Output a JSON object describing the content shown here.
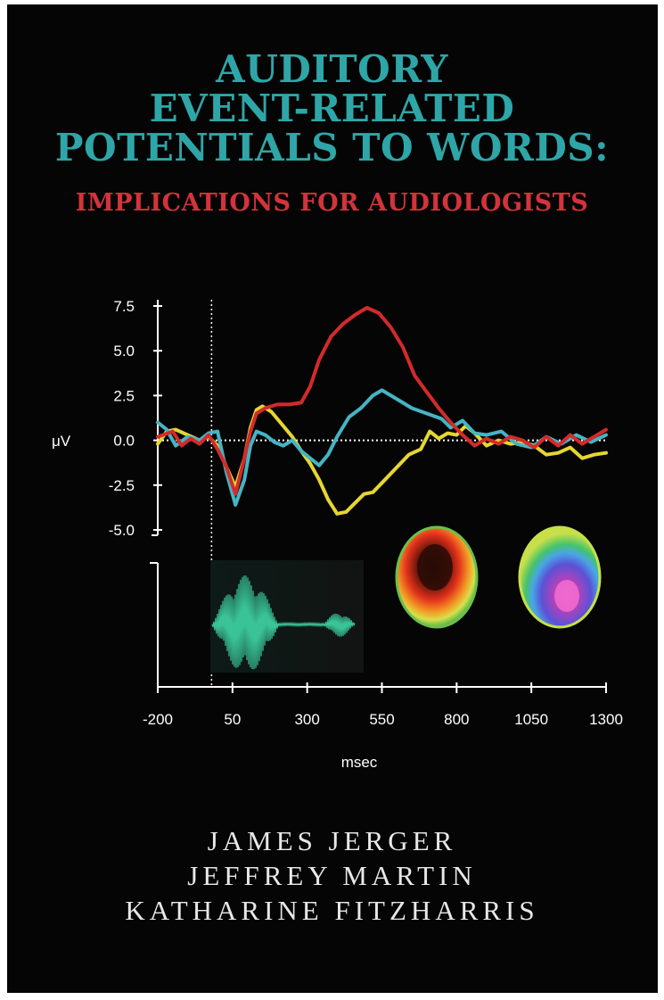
{
  "cover": {
    "title_lines": [
      "AUDITORY",
      "EVENT-RELATED",
      "POTENTIALS TO WORDS:"
    ],
    "subtitle": "IMPLICATIONS FOR AUDIOLOGISTS",
    "authors": [
      "JAMES JERGER",
      "JEFFREY MARTIN",
      "KATHARINE FITZHARRIS"
    ],
    "colors": {
      "background": "#050505",
      "title": "#2ea6a8",
      "subtitle": "#d3333b"
    }
  },
  "chart_data": {
    "type": "line",
    "xlabel": "msec",
    "ylabel": "μV",
    "xlim": [
      -200,
      1300
    ],
    "ylim": [
      -5.0,
      7.5
    ],
    "x_ticks": [
      "-200",
      "50",
      "300",
      "550",
      "800",
      "1050",
      "1300"
    ],
    "y_ticks": [
      "7.5",
      "5.0",
      "2.5",
      "0.0",
      "-2.5",
      "-5.0"
    ],
    "stimulus_onset_ms": -20,
    "series": [
      {
        "color": "#d42a2a",
        "points": [
          [
            -200,
            0.2
          ],
          [
            -150,
            0.5
          ],
          [
            -120,
            -0.3
          ],
          [
            -90,
            0.1
          ],
          [
            -60,
            -0.2
          ],
          [
            -30,
            0.3
          ],
          [
            0,
            -0.5
          ],
          [
            30,
            -1.5
          ],
          [
            60,
            -3.0
          ],
          [
            90,
            -1.0
          ],
          [
            110,
            0.5
          ],
          [
            130,
            1.5
          ],
          [
            160,
            1.8
          ],
          [
            200,
            2.0
          ],
          [
            240,
            2.0
          ],
          [
            280,
            2.1
          ],
          [
            310,
            3.0
          ],
          [
            340,
            4.5
          ],
          [
            380,
            5.8
          ],
          [
            420,
            6.5
          ],
          [
            460,
            7.0
          ],
          [
            500,
            7.4
          ],
          [
            540,
            7.1
          ],
          [
            580,
            6.3
          ],
          [
            620,
            5.2
          ],
          [
            660,
            3.6
          ],
          [
            700,
            2.7
          ],
          [
            740,
            1.8
          ],
          [
            780,
            1.0
          ],
          [
            820,
            0.3
          ],
          [
            860,
            -0.3
          ],
          [
            900,
            0.1
          ],
          [
            940,
            -0.2
          ],
          [
            980,
            0.2
          ],
          [
            1020,
            0.0
          ],
          [
            1060,
            -0.4
          ],
          [
            1100,
            0.2
          ],
          [
            1140,
            -0.3
          ],
          [
            1180,
            0.3
          ],
          [
            1220,
            -0.2
          ],
          [
            1260,
            0.2
          ],
          [
            1300,
            0.6
          ]
        ]
      },
      {
        "color": "#45b4c4",
        "points": [
          [
            -200,
            1.0
          ],
          [
            -170,
            0.6
          ],
          [
            -140,
            -0.3
          ],
          [
            -100,
            0.2
          ],
          [
            -60,
            0.0
          ],
          [
            -30,
            0.4
          ],
          [
            0,
            0.5
          ],
          [
            30,
            -1.8
          ],
          [
            60,
            -3.6
          ],
          [
            90,
            -2.2
          ],
          [
            110,
            -0.3
          ],
          [
            130,
            0.5
          ],
          [
            160,
            0.3
          ],
          [
            190,
            -0.1
          ],
          [
            220,
            -0.3
          ],
          [
            250,
            0.0
          ],
          [
            280,
            -0.6
          ],
          [
            310,
            -1.0
          ],
          [
            340,
            -1.4
          ],
          [
            370,
            -0.8
          ],
          [
            400,
            0.2
          ],
          [
            440,
            1.3
          ],
          [
            480,
            1.8
          ],
          [
            520,
            2.5
          ],
          [
            550,
            2.8
          ],
          [
            600,
            2.3
          ],
          [
            650,
            1.8
          ],
          [
            700,
            1.5
          ],
          [
            750,
            1.2
          ],
          [
            780,
            0.7
          ],
          [
            820,
            1.1
          ],
          [
            860,
            0.4
          ],
          [
            900,
            0.3
          ],
          [
            950,
            0.5
          ],
          [
            1000,
            -0.2
          ],
          [
            1050,
            -0.4
          ],
          [
            1100,
            0.2
          ],
          [
            1150,
            -0.2
          ],
          [
            1200,
            0.3
          ],
          [
            1250,
            -0.1
          ],
          [
            1300,
            0.3
          ]
        ]
      },
      {
        "color": "#e6d630",
        "points": [
          [
            -200,
            -0.2
          ],
          [
            -170,
            0.5
          ],
          [
            -140,
            0.6
          ],
          [
            -100,
            0.3
          ],
          [
            -60,
            0.0
          ],
          [
            -30,
            0.2
          ],
          [
            0,
            -0.3
          ],
          [
            30,
            -1.5
          ],
          [
            60,
            -2.6
          ],
          [
            90,
            -1.0
          ],
          [
            110,
            0.7
          ],
          [
            130,
            1.7
          ],
          [
            150,
            1.9
          ],
          [
            180,
            1.6
          ],
          [
            210,
            1.0
          ],
          [
            250,
            0.2
          ],
          [
            280,
            -0.6
          ],
          [
            310,
            -1.3
          ],
          [
            340,
            -2.2
          ],
          [
            370,
            -3.3
          ],
          [
            400,
            -4.1
          ],
          [
            430,
            -4.0
          ],
          [
            460,
            -3.5
          ],
          [
            490,
            -3.0
          ],
          [
            520,
            -2.9
          ],
          [
            560,
            -2.2
          ],
          [
            600,
            -1.5
          ],
          [
            640,
            -0.8
          ],
          [
            680,
            -0.5
          ],
          [
            710,
            0.5
          ],
          [
            740,
            0.1
          ],
          [
            770,
            0.4
          ],
          [
            800,
            0.3
          ],
          [
            830,
            0.8
          ],
          [
            860,
            0.4
          ],
          [
            900,
            -0.3
          ],
          [
            940,
            0.0
          ],
          [
            980,
            -0.2
          ],
          [
            1020,
            -0.1
          ],
          [
            1060,
            -0.3
          ],
          [
            1100,
            -0.8
          ],
          [
            1140,
            -0.7
          ],
          [
            1180,
            -0.4
          ],
          [
            1220,
            -1.0
          ],
          [
            1260,
            -0.8
          ],
          [
            1300,
            -0.7
          ]
        ]
      }
    ]
  }
}
